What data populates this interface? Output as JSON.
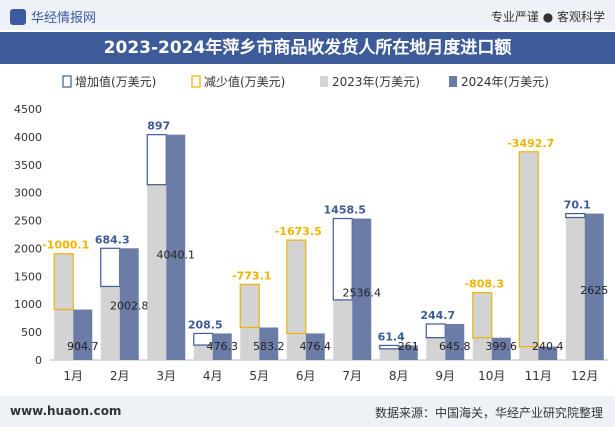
{
  "header": {
    "brand": "华经情报网",
    "tagline": "专业严谨 ● 客观科学"
  },
  "footer": {
    "site": "www.huaon.com",
    "source": "数据来源：中国海关，华经产业研究院整理"
  },
  "colors": {
    "title_bg": "#3d5a99",
    "bar_2023": "#d3d3d3",
    "bar_2024": "#6b7ca6",
    "increase_border": "#3d5a99",
    "decrease_border": "#f0b400"
  },
  "chart_data": {
    "type": "bar",
    "title": "2023-2024年萍乡市商品收发货人所在地月度进口额",
    "categories": [
      "1月",
      "2月",
      "3月",
      "4月",
      "5月",
      "6月",
      "7月",
      "8月",
      "9月",
      "10月",
      "11月",
      "12月"
    ],
    "series": [
      {
        "name": "2023年(万美元)",
        "values": [
          1905,
          1318.5,
          3143,
          267.8,
          1356.3,
          2149.9,
          1077.9,
          199.6,
          401.1,
          1207.9,
          3733.1,
          2554.9
        ]
      },
      {
        "name": "2024年(万美元)",
        "values": [
          904.7,
          2002.8,
          4040.1,
          476.3,
          583.2,
          476.4,
          2536.4,
          261,
          645.8,
          399.6,
          240.4,
          2625
        ]
      }
    ],
    "change_labels": [
      "-1000.1",
      "684.3",
      "897",
      "208.5",
      "-773.1",
      "-1673.5",
      "1458.5",
      "61.4",
      "244.7",
      "-808.3",
      "-3492.7",
      "70.1"
    ],
    "legend": [
      "增加值(万美元)",
      "减少值(万美元)",
      "2023年(万美元)",
      "2024年(万美元)"
    ],
    "legend_position": "top",
    "ylim": [
      0,
      4500
    ],
    "yticks": [
      0,
      500,
      1000,
      1500,
      2000,
      2500,
      3000,
      3500,
      4000,
      4500
    ],
    "grid": false
  }
}
